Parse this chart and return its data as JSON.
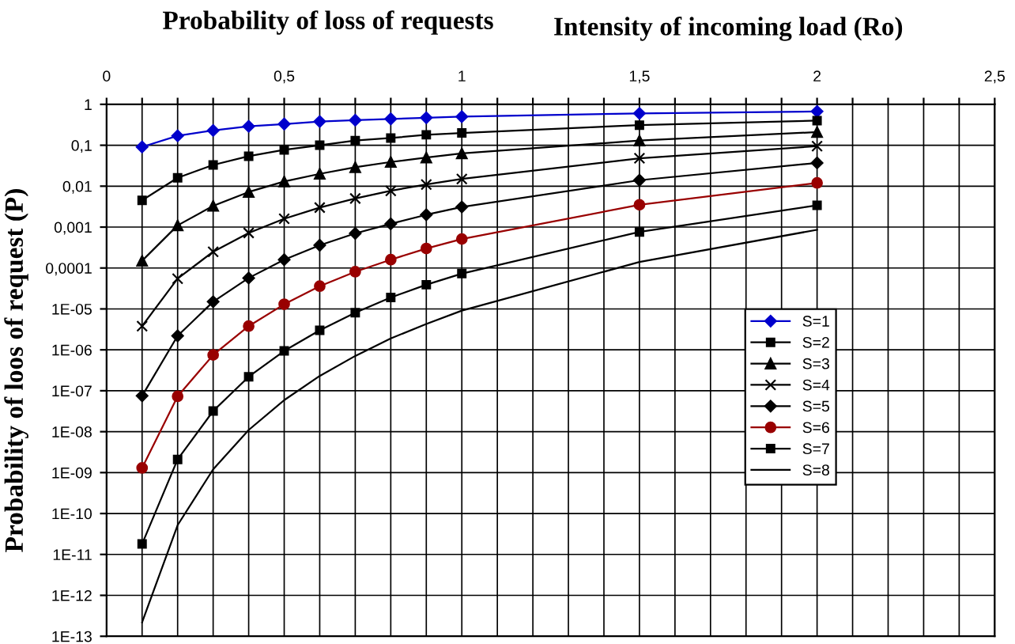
{
  "chart_data": {
    "type": "line",
    "title": "Probability of loss of requests",
    "xlabel": "Intensity of incoming load (Ro)",
    "ylabel": "Probability of loos of request (P)",
    "x": [
      0.1,
      0.2,
      0.3,
      0.4,
      0.5,
      0.6,
      0.7,
      0.8,
      0.9,
      1.0,
      1.5,
      2.0
    ],
    "series": [
      {
        "name": "S=1",
        "color": "#0000cc",
        "marker": "diamond",
        "values": [
          0.091,
          0.17,
          0.23,
          0.29,
          0.33,
          0.38,
          0.41,
          0.44,
          0.47,
          0.5,
          0.6,
          0.67
        ]
      },
      {
        "name": "S=2",
        "color": "#000000",
        "marker": "square",
        "values": [
          0.0045,
          0.016,
          0.033,
          0.054,
          0.077,
          0.1,
          0.13,
          0.15,
          0.18,
          0.2,
          0.31,
          0.4
        ]
      },
      {
        "name": "S=3",
        "color": "#000000",
        "marker": "triangle",
        "values": [
          0.00015,
          0.0011,
          0.0033,
          0.0072,
          0.013,
          0.02,
          0.029,
          0.039,
          0.05,
          0.063,
          0.13,
          0.21
        ]
      },
      {
        "name": "S=4",
        "color": "#000000",
        "marker": "cross",
        "values": [
          3.8e-06,
          5.5e-05,
          0.00025,
          0.00072,
          0.0016,
          0.003,
          0.005,
          0.0077,
          0.011,
          0.015,
          0.048,
          0.095
        ]
      },
      {
        "name": "S=5",
        "color": "#000000",
        "marker": "diamond",
        "values": [
          7.5e-08,
          2.2e-06,
          1.5e-05,
          5.7e-05,
          0.00016,
          0.00036,
          0.0007,
          0.0012,
          0.002,
          0.0031,
          0.014,
          0.037
        ]
      },
      {
        "name": "S=6",
        "color": "#990000",
        "marker": "circle",
        "values": [
          1.3e-09,
          7.3e-08,
          7.5e-07,
          3.8e-06,
          1.3e-05,
          3.6e-05,
          8.1e-05,
          0.00016,
          0.0003,
          0.00051,
          0.0035,
          0.012
        ]
      },
      {
        "name": "S=7",
        "color": "#000000",
        "marker": "square",
        "values": [
          1.8e-11,
          2.1e-09,
          3.2e-08,
          2.2e-07,
          9.4e-07,
          3e-06,
          8.1e-06,
          1.9e-05,
          3.9e-05,
          7.3e-05,
          0.00076,
          0.0034
        ]
      },
      {
        "name": "S=8",
        "color": "#000000",
        "marker": "none",
        "values": [
          2.2e-13,
          5.2e-11,
          1.2e-09,
          1.1e-08,
          5.9e-08,
          2.3e-07,
          7.1e-07,
          1.9e-06,
          4.3e-06,
          9.1e-06,
          0.00014,
          0.00086
        ]
      }
    ],
    "log": "y",
    "xlim": [
      0,
      2.5
    ],
    "ylim": [
      1e-13,
      1
    ],
    "xticks": [
      0,
      {
        "value": 0.1,
        "label": null
      },
      {
        "value": 0.2,
        "label": null
      },
      {
        "value": 0.3,
        "label": null
      },
      {
        "value": 0.4,
        "label": null
      },
      {
        "value": 0.5,
        "label": "0,5"
      },
      {
        "value": 0.6,
        "label": null
      },
      {
        "value": 0.7,
        "label": null
      },
      {
        "value": 0.8,
        "label": null
      },
      {
        "value": 0.9,
        "label": null
      },
      1,
      {
        "value": 1.1,
        "label": null
      },
      {
        "value": 1.2,
        "label": null
      },
      {
        "value": 1.3,
        "label": null
      },
      {
        "value": 1.4,
        "label": null
      },
      {
        "value": 1.5,
        "label": "1,5"
      },
      {
        "value": 1.6,
        "label": null
      },
      {
        "value": 1.7,
        "label": null
      },
      {
        "value": 1.8,
        "label": null
      },
      {
        "value": 1.9,
        "label": null
      },
      2,
      {
        "value": 2.1,
        "label": null
      },
      {
        "value": 2.2,
        "label": null
      },
      {
        "value": 2.3,
        "label": null
      },
      {
        "value": 2.4,
        "label": null
      },
      {
        "value": 2.5,
        "label": "2,5"
      }
    ],
    "yticks": [
      {
        "value": 1e-13,
        "label": "1E-13"
      },
      {
        "value": 1e-12,
        "label": "1E-12"
      },
      {
        "value": 1e-11,
        "label": "1E-11"
      },
      {
        "value": 1e-10,
        "label": "1E-10"
      },
      {
        "value": 1e-09,
        "label": "1E-09"
      },
      {
        "value": 1e-08,
        "label": "1E-08"
      },
      {
        "value": 1e-07,
        "label": "1E-07"
      },
      {
        "value": 1e-06,
        "label": "1E-06"
      },
      {
        "value": 1e-05,
        "label": "1E-05"
      },
      {
        "value": 0.0001,
        "label": "0,0001"
      },
      {
        "value": 0.001,
        "label": "0,001"
      },
      {
        "value": 0.01,
        "label": "0,01"
      },
      {
        "value": 0.1,
        "label": "0,1"
      },
      1
    ],
    "grid": true,
    "legend": "right",
    "line_style": "solid"
  }
}
